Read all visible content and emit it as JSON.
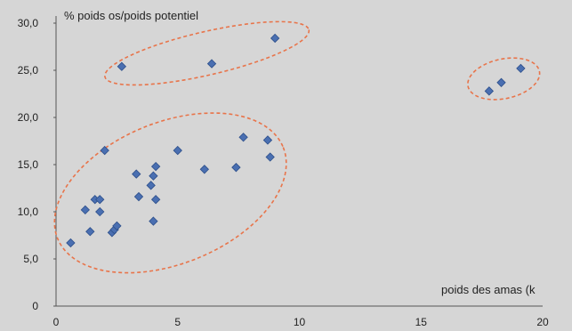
{
  "chart_data": {
    "type": "scatter",
    "title": "",
    "ylabel": "% poids os/poids potentiel",
    "xlabel": "poids des amas (k",
    "xlim": [
      0,
      20
    ],
    "ylim": [
      0,
      30
    ],
    "xticks": [
      0,
      5,
      10,
      15,
      20
    ],
    "yticks": [
      "0",
      "5,0",
      "10,0",
      "15,0",
      "20,0",
      "25,0",
      "30,0"
    ],
    "grid": false,
    "marker_color": "#4a6fb1",
    "ellipse_color": "#e8744a",
    "points": [
      {
        "x": 0.6,
        "y": 6.7
      },
      {
        "x": 1.2,
        "y": 10.2
      },
      {
        "x": 1.4,
        "y": 7.9
      },
      {
        "x": 1.6,
        "y": 11.3
      },
      {
        "x": 1.8,
        "y": 11.3
      },
      {
        "x": 1.8,
        "y": 10.0
      },
      {
        "x": 2.0,
        "y": 16.5
      },
      {
        "x": 2.3,
        "y": 7.8
      },
      {
        "x": 2.4,
        "y": 8.1
      },
      {
        "x": 2.5,
        "y": 8.5
      },
      {
        "x": 3.3,
        "y": 14.0
      },
      {
        "x": 3.4,
        "y": 11.6
      },
      {
        "x": 3.9,
        "y": 12.8
      },
      {
        "x": 4.0,
        "y": 9.0
      },
      {
        "x": 4.0,
        "y": 13.8
      },
      {
        "x": 4.1,
        "y": 14.8
      },
      {
        "x": 4.1,
        "y": 11.3
      },
      {
        "x": 5.0,
        "y": 16.5
      },
      {
        "x": 6.1,
        "y": 14.5
      },
      {
        "x": 7.4,
        "y": 14.7
      },
      {
        "x": 7.7,
        "y": 17.9
      },
      {
        "x": 8.7,
        "y": 17.6
      },
      {
        "x": 8.8,
        "y": 15.8
      },
      {
        "x": 2.7,
        "y": 25.4
      },
      {
        "x": 6.4,
        "y": 25.7
      },
      {
        "x": 9.0,
        "y": 28.4
      },
      {
        "x": 17.8,
        "y": 22.8
      },
      {
        "x": 18.3,
        "y": 23.7
      },
      {
        "x": 19.1,
        "y": 25.2
      }
    ],
    "clusters": [
      {
        "cx": 4.7,
        "cy": 12.0,
        "rx": 5.0,
        "ry": 7.5,
        "angle": -22
      },
      {
        "cx": 6.2,
        "cy": 26.8,
        "rx": 4.3,
        "ry": 2.3,
        "angle": -13
      },
      {
        "cx": 18.4,
        "cy": 24.1,
        "rx": 1.5,
        "ry": 2.1,
        "angle": -12
      }
    ]
  }
}
